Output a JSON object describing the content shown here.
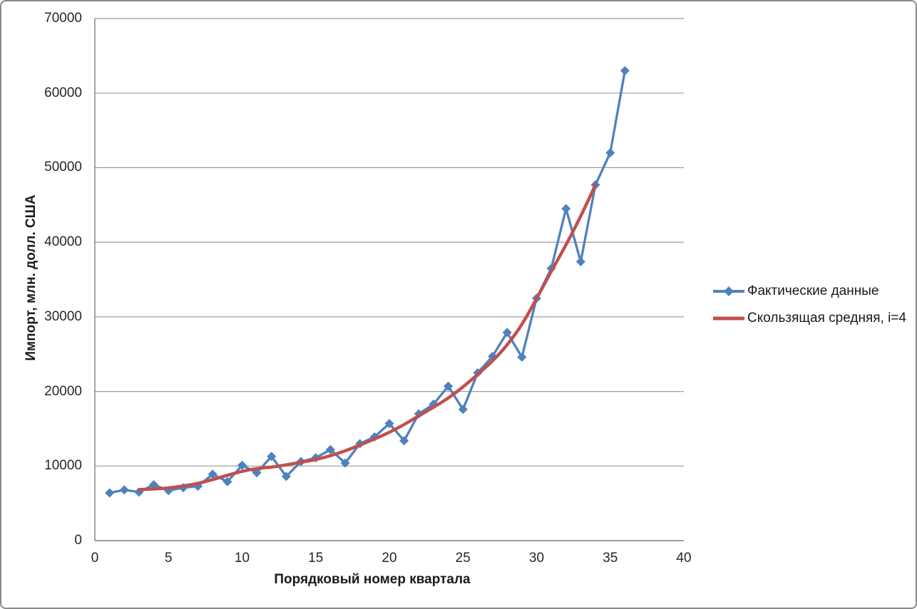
{
  "chart_data": {
    "type": "line",
    "title": "",
    "xlabel": "Порядковый номер квартала",
    "ylabel": "Импорт, млн. долл. США",
    "xlim": [
      0,
      40
    ],
    "ylim": [
      0,
      70000
    ],
    "x_ticks": [
      0,
      5,
      10,
      15,
      20,
      25,
      30,
      35,
      40
    ],
    "y_ticks": [
      0,
      10000,
      20000,
      30000,
      40000,
      50000,
      60000,
      70000
    ],
    "grid": "horizontal-only",
    "gridline_color": "#9C9C9C",
    "axis_line_color": "#808080",
    "legend_position": "right",
    "series": [
      {
        "name": "Фактические данные",
        "color": "#4F81BD",
        "marker": "diamond",
        "line_width": 3.3,
        "x": [
          1,
          2,
          3,
          4,
          5,
          6,
          7,
          8,
          9,
          10,
          11,
          12,
          13,
          14,
          15,
          16,
          17,
          18,
          19,
          20,
          21,
          22,
          23,
          24,
          25,
          26,
          27,
          28,
          29,
          30,
          31,
          32,
          33,
          34,
          35,
          36
        ],
        "values": [
          6400,
          6800,
          6500,
          7500,
          6700,
          7100,
          7300,
          8900,
          7900,
          10100,
          9100,
          11300,
          8600,
          10600,
          11100,
          12200,
          10400,
          13000,
          13900,
          15700,
          13400,
          17000,
          18300,
          20700,
          17600,
          22500,
          24700,
          27900,
          24600,
          32500,
          36500,
          44500,
          37400,
          47700,
          52000,
          63000
        ]
      },
      {
        "name": "Скользящая средняя, i=4",
        "color": "#C0504D",
        "marker": "none",
        "line_width": 4.5,
        "x": [
          3,
          4,
          5,
          6,
          7,
          8,
          9,
          10,
          11,
          12,
          13,
          14,
          15,
          16,
          17,
          18,
          19,
          20,
          21,
          22,
          23,
          24,
          25,
          26,
          27,
          28,
          29,
          30,
          31,
          32,
          33,
          34
        ],
        "values": [
          6838,
          6913,
          7050,
          7325,
          7650,
          8175,
          8775,
          9300,
          9688,
          9838,
          10150,
          10513,
          10850,
          11375,
          12025,
          12813,
          13625,
          14500,
          15550,
          16725,
          17875,
          19088,
          20575,
          22275,
          24050,
          26175,
          28900,
          32450,
          36125,
          39625,
          43463,
          47713
        ]
      }
    ]
  }
}
